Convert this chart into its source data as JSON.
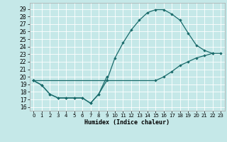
{
  "xlabel": "Humidex (Indice chaleur)",
  "x_ticks": [
    0,
    1,
    2,
    3,
    4,
    5,
    6,
    7,
    8,
    9,
    10,
    11,
    12,
    13,
    14,
    15,
    16,
    17,
    18,
    19,
    20,
    21,
    22,
    23
  ],
  "y_ticks": [
    16,
    17,
    18,
    19,
    20,
    21,
    22,
    23,
    24,
    25,
    26,
    27,
    28,
    29
  ],
  "xlim": [
    -0.5,
    23.5
  ],
  "ylim": [
    15.5,
    29.8
  ],
  "bg_color": "#c5e8e8",
  "grid_color": "#ffffff",
  "line_color": "#1a6b6b",
  "line1_x": [
    0,
    1,
    2,
    3,
    4,
    5,
    6,
    7,
    8,
    9
  ],
  "line1_y": [
    19.5,
    18.9,
    17.7,
    17.2,
    17.2,
    17.2,
    17.2,
    16.5,
    17.7,
    20.0
  ],
  "line2_x": [
    0,
    1,
    2,
    3,
    4,
    5,
    6,
    7,
    8,
    9,
    10,
    11,
    12,
    13,
    14,
    15,
    16,
    17,
    18,
    19,
    20,
    21,
    22
  ],
  "line2_y": [
    19.5,
    18.9,
    17.7,
    17.2,
    17.2,
    17.2,
    17.2,
    16.5,
    17.7,
    19.5,
    22.5,
    24.5,
    26.2,
    27.5,
    28.5,
    28.9,
    28.9,
    28.3,
    27.5,
    25.8,
    24.2,
    23.5,
    23.1
  ],
  "line3_x": [
    0,
    15,
    16,
    17,
    18,
    19,
    20,
    21,
    22,
    23
  ],
  "line3_y": [
    19.5,
    19.5,
    20.0,
    20.7,
    21.5,
    22.0,
    22.5,
    22.8,
    23.1,
    23.1
  ]
}
